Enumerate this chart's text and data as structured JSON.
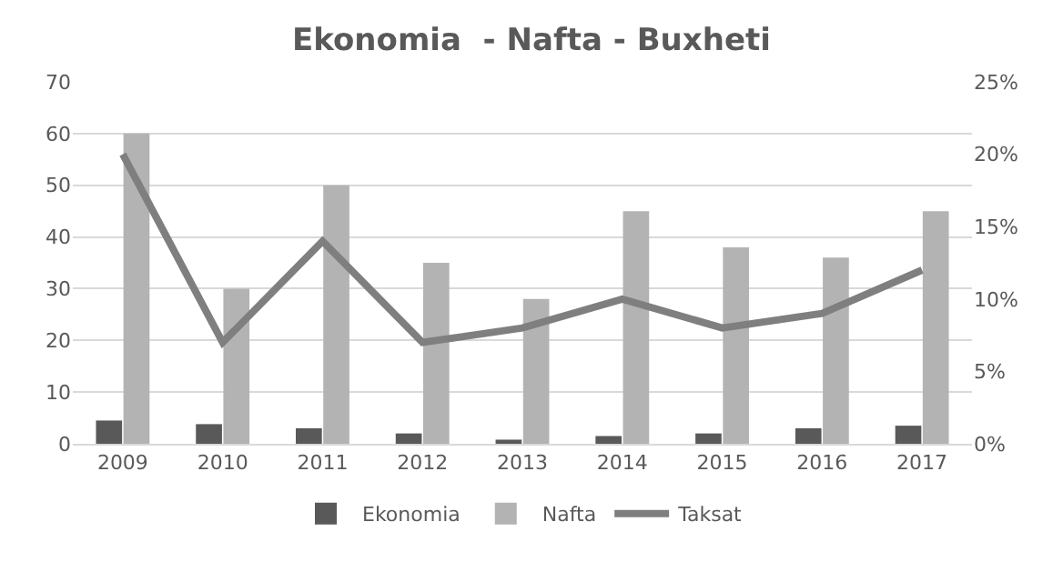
{
  "chart_data": {
    "type": "bar",
    "title": "Ekonomia  - Nafta - Buxheti",
    "categories": [
      "2009",
      "2010",
      "2011",
      "2012",
      "2013",
      "2014",
      "2015",
      "2016",
      "2017"
    ],
    "series": [
      {
        "name": "Ekonomia",
        "color": "#595959",
        "values": [
          4.5,
          3.8,
          3,
          2,
          0.8,
          1.5,
          2,
          3,
          3.5
        ]
      },
      {
        "name": "Nafta",
        "color": "#b3b3b3",
        "values": [
          60,
          30,
          50,
          35,
          28,
          45,
          38,
          36,
          45
        ]
      },
      {
        "name": "Taksat",
        "type": "line",
        "axis": "y2",
        "color": "#7f7f7f",
        "values": [
          20,
          7,
          14,
          7,
          8,
          10,
          8,
          9,
          12
        ]
      }
    ],
    "ylim": [
      0,
      70
    ],
    "yticks": [
      0,
      10,
      20,
      30,
      40,
      50,
      60,
      70
    ],
    "y2lim": [
      0,
      25
    ],
    "y2ticks": [
      {
        "value": 0,
        "label": "0%"
      },
      {
        "value": 5,
        "label": "5%"
      },
      {
        "value": 10,
        "label": "10%"
      },
      {
        "value": 15,
        "label": "15%"
      },
      {
        "value": 20,
        "label": "20%"
      },
      {
        "value": 25,
        "label": "25%"
      }
    ],
    "grid": "y",
    "legend": "bottom",
    "marker": "none",
    "line_style": "solid"
  }
}
